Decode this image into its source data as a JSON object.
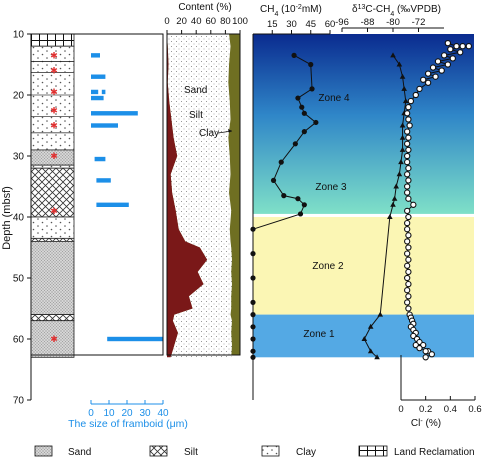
{
  "chart_data": [
    {
      "panel": "lithology",
      "type": "table",
      "ylabel": "Depth (mbsf)",
      "ylim": [
        10,
        70
      ],
      "yticks": [
        "10",
        "20",
        "30",
        "40",
        "50",
        "60",
        "70"
      ],
      "layers": [
        {
          "top": 10,
          "bottom": 12,
          "lith": "Land Reclamation"
        },
        {
          "top": 12,
          "bottom": 14.5,
          "lith": "Clay"
        },
        {
          "top": 14.5,
          "bottom": 29,
          "lith": "Clay"
        },
        {
          "top": 29,
          "bottom": 31.5,
          "lith": "Sand"
        },
        {
          "top": 31.5,
          "bottom": 32,
          "lith": "Clay"
        },
        {
          "top": 32,
          "bottom": 40,
          "lith": "Silt"
        },
        {
          "top": 40,
          "bottom": 43.5,
          "lith": "Clay"
        },
        {
          "top": 43.5,
          "bottom": 44,
          "lith": "Silt"
        },
        {
          "top": 44,
          "bottom": 56,
          "lith": "Sand"
        },
        {
          "top": 56,
          "bottom": 57,
          "lith": "Silt"
        },
        {
          "top": 57,
          "bottom": 63,
          "lith": "Sand"
        }
      ],
      "markers": [
        13.5,
        16,
        19.5,
        22.5,
        25,
        30,
        39,
        60
      ],
      "marker_color": "#e03030"
    },
    {
      "panel": "framboid",
      "type": "bar",
      "xlabel": "The size of framboid (μm)",
      "xlim": [
        0,
        40
      ],
      "xticks": [
        "0",
        "10",
        "20",
        "30",
        "40"
      ],
      "color": "#1c8fe8",
      "bars": [
        {
          "depth": 13.5,
          "min": 0,
          "max": 5
        },
        {
          "depth": 17,
          "min": 0,
          "max": 8
        },
        {
          "depth": 19.5,
          "min": 0,
          "max": 4
        },
        {
          "depth": 19.5,
          "min": 6,
          "max": 8
        },
        {
          "depth": 20.5,
          "min": 0,
          "max": 7
        },
        {
          "depth": 23,
          "min": 0,
          "max": 26
        },
        {
          "depth": 25,
          "min": 0,
          "max": 15
        },
        {
          "depth": 30.5,
          "min": 2,
          "max": 8
        },
        {
          "depth": 34,
          "min": 3,
          "max": 11
        },
        {
          "depth": 38,
          "min": 3,
          "max": 21
        },
        {
          "depth": 60,
          "min": 9,
          "max": 40
        }
      ]
    },
    {
      "panel": "grain_size",
      "type": "area",
      "xlabel": "Content (%)",
      "xlim": [
        0,
        100
      ],
      "xticks": [
        "0",
        "20",
        "40",
        "60",
        "80",
        "100"
      ],
      "annotations": [
        "Sand",
        "Silt",
        "Clay"
      ],
      "colors": {
        "sand": "#7a1818",
        "silt": "#ffffff",
        "clay": "#6f6f22"
      },
      "depth": [
        10,
        12,
        15,
        18,
        21,
        24,
        27,
        30,
        33,
        36,
        39,
        42,
        44,
        45,
        47,
        49,
        51,
        53,
        55,
        56,
        57,
        59,
        61,
        63
      ],
      "sand": [
        0,
        1,
        2,
        1,
        3,
        6,
        9,
        14,
        5,
        7,
        12,
        16,
        25,
        45,
        55,
        42,
        50,
        30,
        35,
        10,
        8,
        15,
        10,
        5
      ],
      "silt_upper": [
        85,
        87,
        85,
        84,
        86,
        87,
        84,
        86,
        87,
        85,
        88,
        86,
        87,
        88,
        89,
        88,
        89,
        88,
        88,
        87,
        89,
        88,
        89,
        88
      ]
    },
    {
      "panel": "methane_isotope",
      "type": "line",
      "ylim": [
        10,
        70
      ],
      "zones": [
        {
          "name": "Zone 4",
          "top": 10,
          "bottom": 40
        },
        {
          "name": "Zone 3",
          "top": 10,
          "bottom": 40
        },
        {
          "name": "Zone 2",
          "top": 40,
          "bottom": 56
        },
        {
          "name": "Zone 1",
          "top": 56,
          "bottom": 63
        }
      ],
      "zone_colors": {
        "zone4_top": "#0a2b8f",
        "zone4_bottom": "#55cfd0",
        "zone2": "#fbf6b4",
        "zone1": "#54a9e4"
      },
      "series": [
        {
          "name": "CH4 (10-2mM)",
          "axis_label": "CH",
          "axis_sub": "4",
          "axis_unit": " (10",
          "axis_sup": "-2",
          "axis_tail": "mM)",
          "xlim": [
            0,
            60
          ],
          "xticks": [
            "15",
            "30",
            "45",
            "60"
          ],
          "marker": "circle",
          "x": [
            32,
            45,
            46,
            35,
            38,
            40,
            49,
            40,
            33,
            22,
            16,
            24,
            35,
            40,
            37,
            0,
            0,
            0,
            0,
            0,
            0,
            0,
            0,
            0
          ],
          "y": [
            13.5,
            15,
            19,
            20.5,
            22,
            23,
            24.5,
            26,
            28,
            31,
            34,
            36.5,
            37,
            38,
            39.5,
            42,
            46,
            50,
            54,
            56,
            58,
            60,
            62,
            63
          ]
        },
        {
          "name": "δ13C-CH4 (‰VPDB)",
          "axis_label": "δ",
          "axis_sup": "13",
          "axis_tail": "C-CH",
          "axis_sub": "4",
          "axis_unit": " (‰VPDB)",
          "xlim": [
            -96,
            -64
          ],
          "xticks": [
            "-96",
            "-88",
            "-80",
            "-72"
          ],
          "marker": "triangle",
          "x": [
            -80,
            -78,
            -77,
            -76.5,
            -76,
            -76.5,
            -77,
            -77,
            -77,
            -77.5,
            -78,
            -79,
            -79.5,
            -80,
            -81,
            -84,
            -87,
            -89,
            -87,
            -85
          ],
          "y": [
            13.5,
            15,
            17,
            19,
            21,
            23,
            25,
            27,
            29,
            31,
            33,
            35,
            37,
            38,
            40,
            56,
            58,
            60,
            62,
            63
          ]
        },
        {
          "name": "Cl- (%)",
          "axis_label": "Cl",
          "axis_sup": "-",
          "axis_unit": " (%)",
          "xlim": [
            0,
            0.6
          ],
          "xticks": [
            "0",
            "0.2",
            "0.4",
            "0.6"
          ],
          "marker": "circle-hollow",
          "x": [
            0.38,
            0.45,
            0.5,
            0.55,
            0.4,
            0.48,
            0.35,
            0.42,
            0.3,
            0.38,
            0.26,
            0.33,
            0.22,
            0.28,
            0.18,
            0.22,
            0.15,
            0.12,
            0.08,
            0.06,
            0.05,
            0.06,
            0.07,
            0.05,
            0.06,
            0.05,
            0.06,
            0.05,
            0.05,
            0.06,
            0.05,
            0.06,
            0.05,
            0.05,
            0.06,
            0.1,
            0.05,
            0.06,
            0.05,
            0.05,
            0.06,
            0.05,
            0.06,
            0.05,
            0.06,
            0.05,
            0.06,
            0.05,
            0.06,
            0.05,
            0.06,
            0.05,
            0.06,
            0.07,
            0.08,
            0.09,
            0.1,
            0.08,
            0.1,
            0.12,
            0.1,
            0.13,
            0.15,
            0.12,
            0.18,
            0.15,
            0.22,
            0.2,
            0.25,
            0.2
          ],
          "y": [
            11.5,
            12,
            12,
            12,
            12.5,
            13,
            13.5,
            14,
            14.5,
            15,
            15.5,
            16,
            16.5,
            17,
            17.5,
            18,
            19,
            20,
            21,
            22,
            23,
            24,
            25,
            26,
            27,
            28,
            29,
            30,
            31,
            32,
            33,
            34,
            35,
            36,
            37,
            38,
            39,
            40,
            41,
            42,
            43,
            44,
            45,
            46,
            47,
            48,
            49,
            50,
            51,
            52,
            53,
            54,
            55,
            56,
            56.5,
            57,
            57.5,
            58,
            58.5,
            59,
            59.5,
            60,
            60.5,
            61,
            61,
            61.5,
            62,
            62,
            62.5,
            63
          ]
        }
      ]
    }
  ],
  "legend": [
    {
      "label": "Sand",
      "pattern": "sand"
    },
    {
      "label": "Silt",
      "pattern": "silt"
    },
    {
      "label": "Clay",
      "pattern": "clay"
    },
    {
      "label": "Land Reclamation",
      "pattern": "land"
    }
  ]
}
